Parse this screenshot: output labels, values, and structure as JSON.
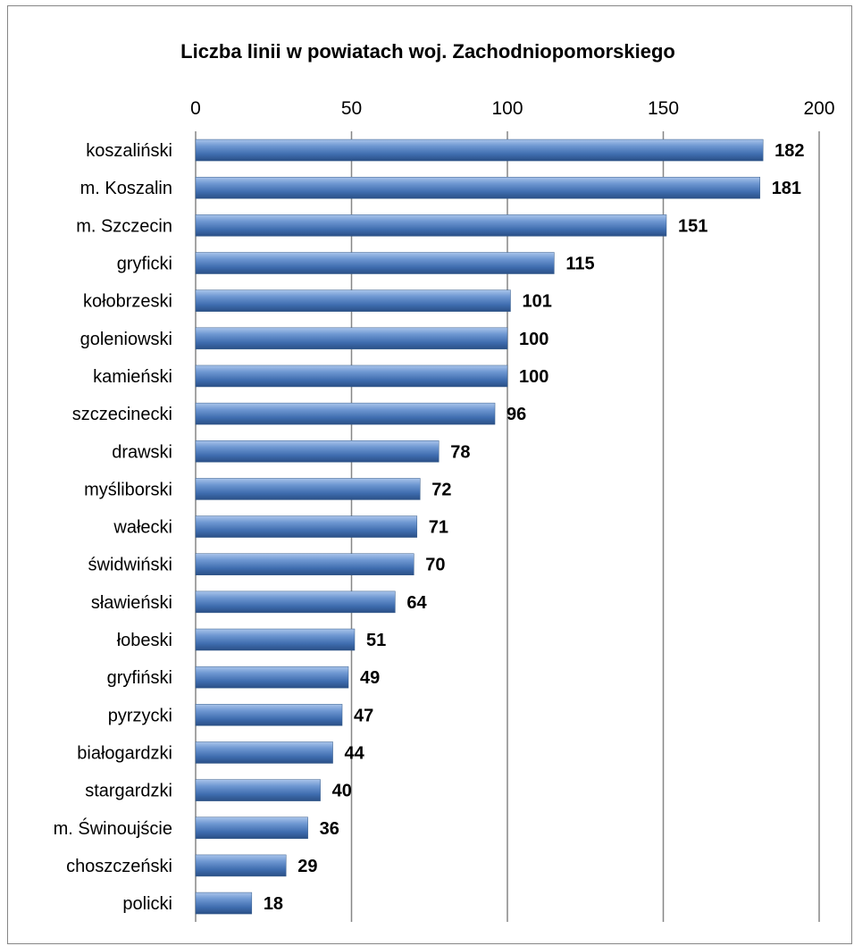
{
  "chart_data": {
    "type": "bar",
    "orientation": "horizontal",
    "title": "Liczba linii w powiatach woj. Zachodniopomorskiego",
    "xlabel": "",
    "ylabel": "",
    "xlim": [
      0,
      200
    ],
    "x_ticks": [
      "0",
      "50",
      "100",
      "150",
      "200"
    ],
    "x_axis_position": "top",
    "grid": true,
    "legend": "none",
    "bar_color": "#4f81bd",
    "categories": [
      "koszaliński",
      "m. Koszalin",
      "m. Szczecin",
      "gryficki",
      "kołobrzeski",
      "goleniowski",
      "kamieński",
      "szczecinecki",
      "drawski",
      "myśliborski",
      "wałecki",
      "świdwiński",
      "sławieński",
      "łobeski",
      "gryfiński",
      "pyrzycki",
      "białogardzki",
      "stargardzki",
      "m. Świnoujście",
      "choszczeński",
      "policki"
    ],
    "values": [
      182,
      181,
      151,
      115,
      101,
      100,
      100,
      96,
      78,
      72,
      71,
      70,
      64,
      51,
      49,
      47,
      44,
      40,
      36,
      29,
      18
    ]
  }
}
